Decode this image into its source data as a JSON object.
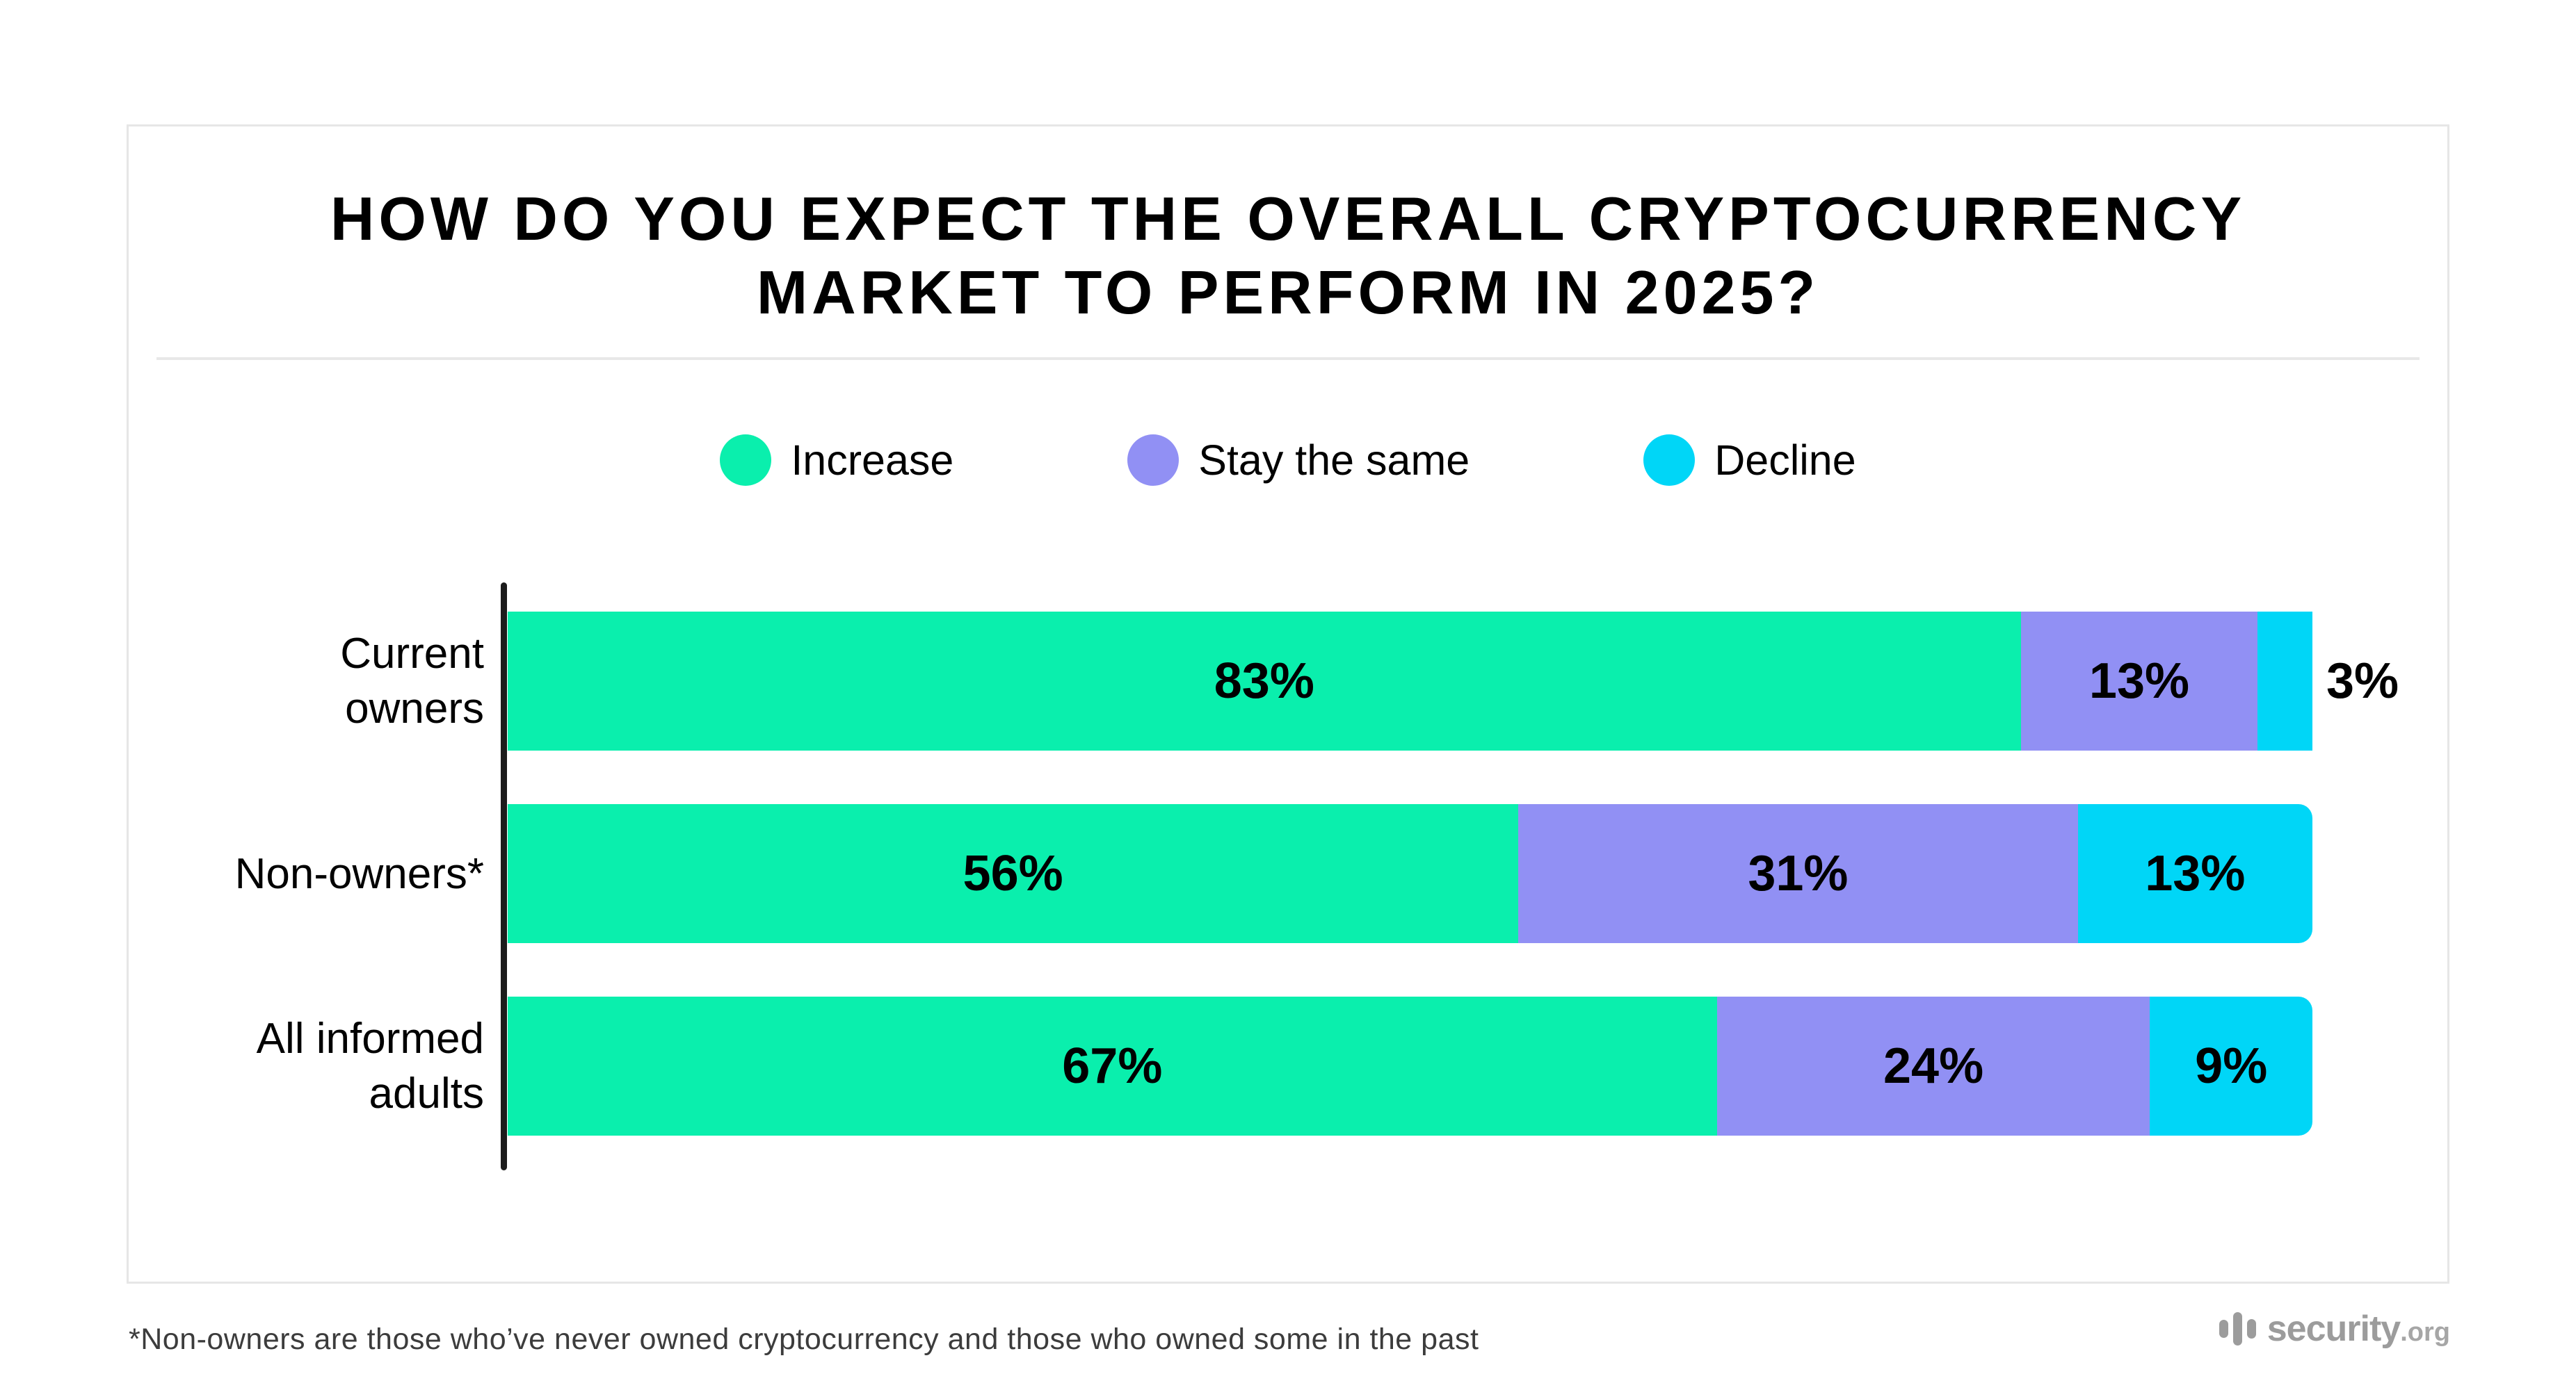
{
  "title": {
    "text": "HOW DO YOU EXPECT THE OVERALL CRYPTOCURRENCY MARKET TO PERFORM IN 2025?"
  },
  "chart_data": {
    "type": "bar",
    "orientation": "horizontal",
    "stacked": true,
    "categories": [
      "Current\nowners",
      "Non-owners*",
      "All informed\nadults"
    ],
    "series": [
      {
        "name": "Increase",
        "color": "#0aefad",
        "values": [
          83,
          56,
          67
        ]
      },
      {
        "name": "Stay the same",
        "color": "#9190f4",
        "values": [
          13,
          31,
          24
        ]
      },
      {
        "name": "Decline",
        "color": "#00d6f7",
        "values": [
          3,
          13,
          9
        ]
      }
    ],
    "value_suffix": "%",
    "outside_label_threshold": 5,
    "legend_position": "top",
    "grid": false,
    "axis_color": "#1c1c1c"
  },
  "footnote": {
    "text": "*Non-owners are those who’ve never owned cryptocurrency and those who owned some in the past"
  },
  "logo": {
    "name": "security",
    "tld": ".org",
    "color": "#9c9c9c"
  }
}
